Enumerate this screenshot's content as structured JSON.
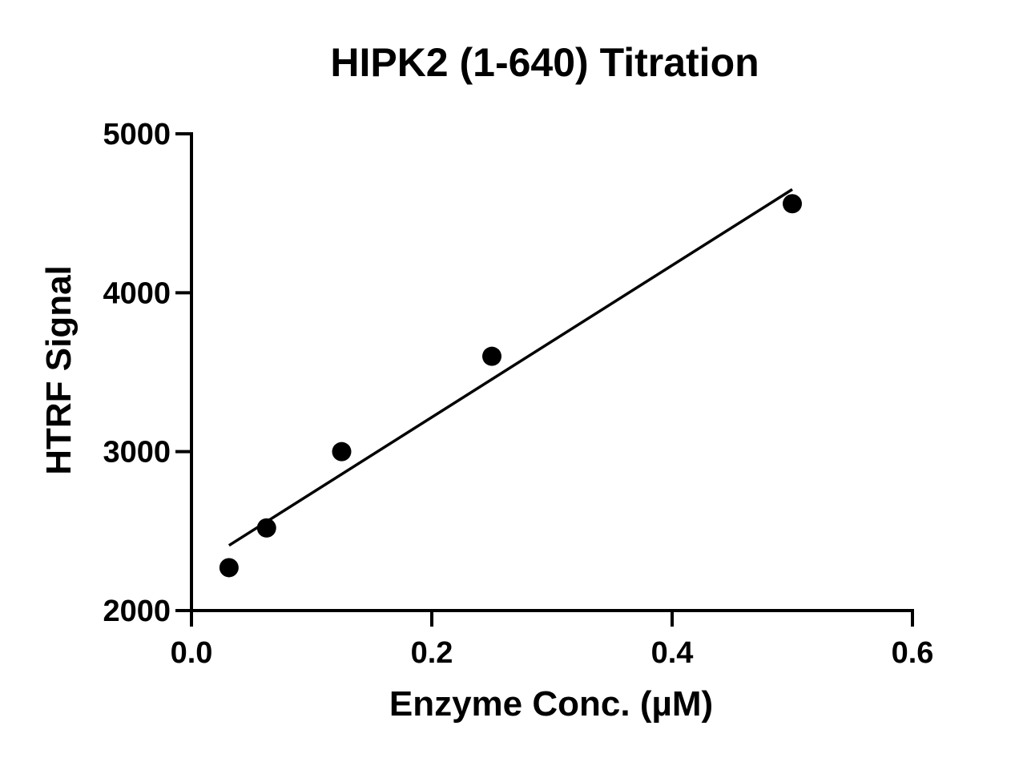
{
  "chart_data": {
    "type": "scatter",
    "title": "HIPK2 (1-640) Titration",
    "xlabel": "Enzyme Conc. (µM)",
    "ylabel": "HTRF Signal",
    "xlim": [
      0,
      0.6
    ],
    "ylim": [
      2000,
      5000
    ],
    "x_ticks": [
      0.0,
      0.2,
      0.4,
      0.6
    ],
    "x_tick_labels": [
      "0.0",
      "0.2",
      "0.4",
      "0.6"
    ],
    "y_ticks": [
      2000,
      3000,
      4000,
      5000
    ],
    "y_tick_labels": [
      "2000",
      "3000",
      "4000",
      "5000"
    ],
    "grid": false,
    "legend": "none",
    "series": [
      {
        "points": [
          {
            "x": 0.03125,
            "y": 2270
          },
          {
            "x": 0.0625,
            "y": 2520
          },
          {
            "x": 0.125,
            "y": 3000
          },
          {
            "x": 0.25,
            "y": 3600
          },
          {
            "x": 0.5,
            "y": 4560
          }
        ],
        "fit": {
          "type": "linear",
          "x": [
            0.03125,
            0.5
          ],
          "y": [
            2410,
            4650
          ]
        }
      }
    ]
  }
}
